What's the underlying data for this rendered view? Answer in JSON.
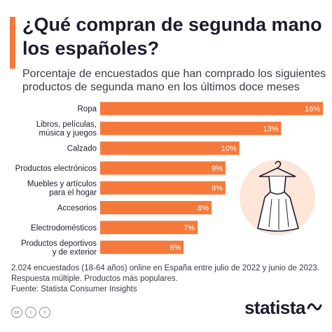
{
  "title": "¿Qué compran de segunda mano los españoles?",
  "subtitle": "Porcentaje de encuestados que han comprado los siguientes productos de segunda mano en los últimos doce meses",
  "chart_data": {
    "type": "bar",
    "orientation": "horizontal",
    "categories": [
      [
        "Ropa"
      ],
      [
        "Libros, películas,",
        "música y juegos"
      ],
      [
        "Calzado"
      ],
      [
        "Productos electrónicos"
      ],
      [
        "Muebles y artículos",
        "para el hogar"
      ],
      [
        "Accesorios"
      ],
      [
        "Electrodomésticos"
      ],
      [
        "Productos deportivos",
        "y de exterior"
      ]
    ],
    "values": [
      16,
      13,
      10,
      9,
      9,
      8,
      7,
      6
    ],
    "value_labels": [
      "16%",
      "13%",
      "10%",
      "9%",
      "9%",
      "8%",
      "7%",
      "6%"
    ],
    "unit": "%",
    "bar_color": "#f5793a",
    "xlim": [
      0,
      16
    ]
  },
  "notes": {
    "line1": "2.024 encuestados (18-64 años) online en España entre julio de 2022 y junio de 2023.",
    "line2": "Respuesta múltiple. Productos más populares.",
    "source": "Fuente: Statista Consumer Insights"
  },
  "footer": {
    "icons": [
      "cc-icon",
      "person-icon",
      "equals-icon"
    ],
    "icon_glyphs": [
      "cc",
      "i",
      "="
    ],
    "logo": "statista"
  },
  "colors": {
    "accent": "#f5793a",
    "title": "#1c1c2e",
    "text": "#3a3a4a",
    "decoration_bg": "#fde6d8"
  }
}
